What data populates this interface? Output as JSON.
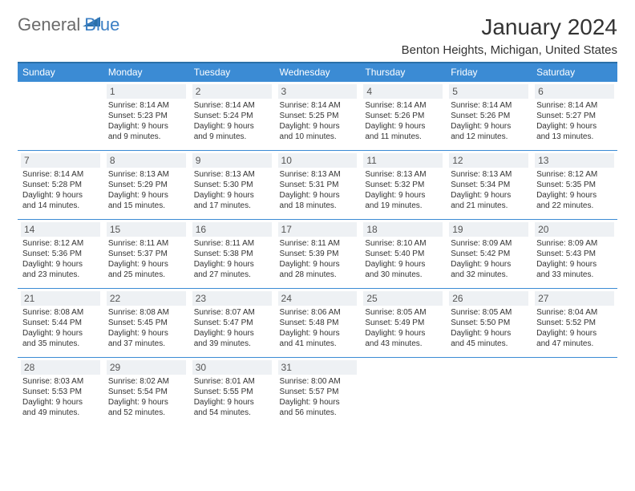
{
  "logo": {
    "word1": "General",
    "word2": "Blue"
  },
  "title": "January 2024",
  "location": "Benton Heights, Michigan, United States",
  "colors": {
    "header_bg": "#3b8bd4",
    "header_border": "#2a6fa8",
    "cell_border": "#3b8bd4",
    "daynum_bg": "#eef1f4",
    "logo_gray": "#6b6b6b",
    "logo_blue": "#3b7fc4",
    "text": "#333333"
  },
  "day_headers": [
    "Sunday",
    "Monday",
    "Tuesday",
    "Wednesday",
    "Thursday",
    "Friday",
    "Saturday"
  ],
  "weeks": [
    [
      null,
      {
        "n": "1",
        "sr": "8:14 AM",
        "ss": "5:23 PM",
        "d1": "9 hours",
        "d2": "and 9 minutes."
      },
      {
        "n": "2",
        "sr": "8:14 AM",
        "ss": "5:24 PM",
        "d1": "9 hours",
        "d2": "and 9 minutes."
      },
      {
        "n": "3",
        "sr": "8:14 AM",
        "ss": "5:25 PM",
        "d1": "9 hours",
        "d2": "and 10 minutes."
      },
      {
        "n": "4",
        "sr": "8:14 AM",
        "ss": "5:26 PM",
        "d1": "9 hours",
        "d2": "and 11 minutes."
      },
      {
        "n": "5",
        "sr": "8:14 AM",
        "ss": "5:26 PM",
        "d1": "9 hours",
        "d2": "and 12 minutes."
      },
      {
        "n": "6",
        "sr": "8:14 AM",
        "ss": "5:27 PM",
        "d1": "9 hours",
        "d2": "and 13 minutes."
      }
    ],
    [
      {
        "n": "7",
        "sr": "8:14 AM",
        "ss": "5:28 PM",
        "d1": "9 hours",
        "d2": "and 14 minutes."
      },
      {
        "n": "8",
        "sr": "8:13 AM",
        "ss": "5:29 PM",
        "d1": "9 hours",
        "d2": "and 15 minutes."
      },
      {
        "n": "9",
        "sr": "8:13 AM",
        "ss": "5:30 PM",
        "d1": "9 hours",
        "d2": "and 17 minutes."
      },
      {
        "n": "10",
        "sr": "8:13 AM",
        "ss": "5:31 PM",
        "d1": "9 hours",
        "d2": "and 18 minutes."
      },
      {
        "n": "11",
        "sr": "8:13 AM",
        "ss": "5:32 PM",
        "d1": "9 hours",
        "d2": "and 19 minutes."
      },
      {
        "n": "12",
        "sr": "8:13 AM",
        "ss": "5:34 PM",
        "d1": "9 hours",
        "d2": "and 21 minutes."
      },
      {
        "n": "13",
        "sr": "8:12 AM",
        "ss": "5:35 PM",
        "d1": "9 hours",
        "d2": "and 22 minutes."
      }
    ],
    [
      {
        "n": "14",
        "sr": "8:12 AM",
        "ss": "5:36 PM",
        "d1": "9 hours",
        "d2": "and 23 minutes."
      },
      {
        "n": "15",
        "sr": "8:11 AM",
        "ss": "5:37 PM",
        "d1": "9 hours",
        "d2": "and 25 minutes."
      },
      {
        "n": "16",
        "sr": "8:11 AM",
        "ss": "5:38 PM",
        "d1": "9 hours",
        "d2": "and 27 minutes."
      },
      {
        "n": "17",
        "sr": "8:11 AM",
        "ss": "5:39 PM",
        "d1": "9 hours",
        "d2": "and 28 minutes."
      },
      {
        "n": "18",
        "sr": "8:10 AM",
        "ss": "5:40 PM",
        "d1": "9 hours",
        "d2": "and 30 minutes."
      },
      {
        "n": "19",
        "sr": "8:09 AM",
        "ss": "5:42 PM",
        "d1": "9 hours",
        "d2": "and 32 minutes."
      },
      {
        "n": "20",
        "sr": "8:09 AM",
        "ss": "5:43 PM",
        "d1": "9 hours",
        "d2": "and 33 minutes."
      }
    ],
    [
      {
        "n": "21",
        "sr": "8:08 AM",
        "ss": "5:44 PM",
        "d1": "9 hours",
        "d2": "and 35 minutes."
      },
      {
        "n": "22",
        "sr": "8:08 AM",
        "ss": "5:45 PM",
        "d1": "9 hours",
        "d2": "and 37 minutes."
      },
      {
        "n": "23",
        "sr": "8:07 AM",
        "ss": "5:47 PM",
        "d1": "9 hours",
        "d2": "and 39 minutes."
      },
      {
        "n": "24",
        "sr": "8:06 AM",
        "ss": "5:48 PM",
        "d1": "9 hours",
        "d2": "and 41 minutes."
      },
      {
        "n": "25",
        "sr": "8:05 AM",
        "ss": "5:49 PM",
        "d1": "9 hours",
        "d2": "and 43 minutes."
      },
      {
        "n": "26",
        "sr": "8:05 AM",
        "ss": "5:50 PM",
        "d1": "9 hours",
        "d2": "and 45 minutes."
      },
      {
        "n": "27",
        "sr": "8:04 AM",
        "ss": "5:52 PM",
        "d1": "9 hours",
        "d2": "and 47 minutes."
      }
    ],
    [
      {
        "n": "28",
        "sr": "8:03 AM",
        "ss": "5:53 PM",
        "d1": "9 hours",
        "d2": "and 49 minutes."
      },
      {
        "n": "29",
        "sr": "8:02 AM",
        "ss": "5:54 PM",
        "d1": "9 hours",
        "d2": "and 52 minutes."
      },
      {
        "n": "30",
        "sr": "8:01 AM",
        "ss": "5:55 PM",
        "d1": "9 hours",
        "d2": "and 54 minutes."
      },
      {
        "n": "31",
        "sr": "8:00 AM",
        "ss": "5:57 PM",
        "d1": "9 hours",
        "d2": "and 56 minutes."
      },
      null,
      null,
      null
    ]
  ],
  "labels": {
    "sunrise": "Sunrise:",
    "sunset": "Sunset:",
    "daylight": "Daylight:"
  }
}
